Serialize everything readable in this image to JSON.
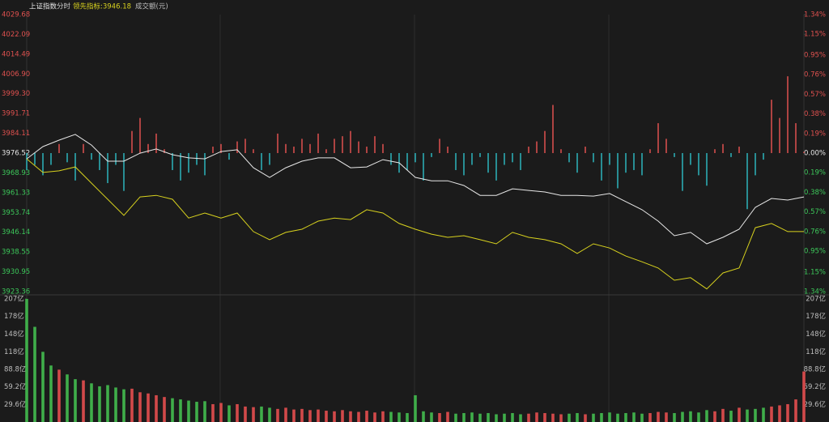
{
  "header": {
    "items": [
      "上证指数",
      "分时",
      "领先指标:3946.18",
      "成交额(元)"
    ]
  },
  "chart_data": {
    "type": "intraday",
    "ylim": [
      3923.36,
      4029.68
    ],
    "yticks": [
      4029.68,
      4022.09,
      4014.49,
      {
        "value": 4006.9,
        "label": "4006.90"
      },
      {
        "value": 3999.3,
        "label": "3999.30"
      },
      3991.71,
      3984.11,
      3976.52,
      3968.93,
      3961.33,
      3953.74,
      3946.14,
      3938.55,
      3930.95,
      3923.36
    ],
    "y2lim": [
      -1.34,
      1.34
    ],
    "y2ticks": [
      {
        "value": 1.34,
        "label": "1.34%"
      },
      {
        "value": 1.15,
        "label": "1.15%"
      },
      {
        "value": 0.95,
        "label": "0.95%"
      },
      {
        "value": 0.76,
        "label": "0.76%"
      },
      {
        "value": 0.57,
        "label": "0.57%"
      },
      {
        "value": 0.38,
        "label": "0.38%"
      },
      {
        "value": 0.19,
        "label": "0.19%"
      },
      {
        "value": 0,
        "label": "0.00%"
      },
      {
        "value": -0.19,
        "label": "0.19%"
      },
      {
        "value": -0.38,
        "label": "0.38%"
      },
      {
        "value": -0.57,
        "label": "0.57%"
      },
      {
        "value": -0.76,
        "label": "0.76%"
      },
      {
        "value": -0.95,
        "label": "0.95%"
      },
      {
        "value": -1.15,
        "label": "1.15%"
      },
      {
        "value": -1.34,
        "label": "1.34%"
      }
    ],
    "up_color": "#e0514f",
    "down_color": "#2cb5bd",
    "flat_color": "#e6e6e6",
    "down_label_color": "#3cc85a",
    "series": [
      {
        "color": "#e8e8e8",
        "values": [
          3974.3,
          3979.0,
          3981.5,
          3983.7,
          3979.6,
          3973.4,
          3973.4,
          3976.5,
          3978.1,
          3975.9,
          3974.7,
          3974.3,
          3977.1,
          3977.8,
          3970.9,
          3967.2,
          3970.9,
          3973.4,
          3974.7,
          3974.7,
          3970.9,
          3971.2,
          3974.0,
          3972.8,
          3967.2,
          3965.9,
          3965.9,
          3964.1,
          3960.3,
          3960.3,
          3962.8,
          3962.2,
          3961.6,
          3960.3,
          3960.3,
          3960.0,
          3961.0,
          3957.9,
          3954.8,
          3950.4,
          3944.8,
          3946.1,
          3941.7,
          3944.2,
          3947.3,
          3955.7,
          3959.1,
          3958.5,
          3959.7
        ]
      },
      {
        "name": "领先指标",
        "color": "#d8d21e",
        "values": [
          3974.3,
          3969.1,
          3969.7,
          3971.2,
          3965.0,
          3958.8,
          3952.6,
          3959.7,
          3960.3,
          3958.8,
          3951.6,
          3953.5,
          3951.6,
          3953.5,
          3946.4,
          3943.3,
          3946.1,
          3947.3,
          3950.4,
          3951.6,
          3951.0,
          3954.8,
          3953.5,
          3949.5,
          3947.3,
          3945.4,
          3944.2,
          3944.8,
          3943.3,
          3941.7,
          3946.1,
          3944.2,
          3943.3,
          3941.7,
          3938.0,
          3941.7,
          3940.1,
          3937.0,
          3934.8,
          3932.4,
          3927.7,
          3928.7,
          3924.4,
          3930.5,
          3932.4,
          3947.9,
          3949.5,
          3946.4,
          3946.4
        ]
      }
    ],
    "bars": {
      "values": [
        3970,
        3972,
        3968,
        3972,
        3980,
        3973,
        3966,
        3980,
        3974,
        3970,
        3965,
        3972,
        3962,
        3985,
        3990,
        3980,
        3984,
        3978,
        3970,
        3966,
        3969,
        3972,
        3968,
        3979,
        3980,
        3974,
        3981,
        3982,
        3978,
        3970,
        3972,
        3984,
        3980,
        3979,
        3982,
        3980,
        3984,
        3978,
        3982,
        3983,
        3985,
        3981,
        3979,
        3983,
        3980,
        3972,
        3969,
        3970,
        3973,
        3966,
        3975,
        3982,
        3979,
        3970,
        3968,
        3972,
        3975,
        3969,
        3966,
        3972,
        3973,
        3970,
        3979,
        3981,
        3985,
        3995,
        3978,
        3973,
        3969,
        3979,
        3973,
        3966,
        3972,
        3963,
        3969,
        3970,
        3968,
        3978,
        3988,
        3982,
        3975,
        3962,
        3972,
        3968,
        3964,
        3978,
        3980,
        3975,
        3979,
        3955,
        3968,
        3974,
        3997,
        3990,
        4006,
        3988,
        3977
      ]
    },
    "volume": {
      "ylim": [
        0,
        207
      ],
      "yticks": [
        {
          "value": 207,
          "label": "207亿"
        },
        {
          "value": 178,
          "label": "178亿"
        },
        {
          "value": 148,
          "label": "148亿"
        },
        {
          "value": 118,
          "label": "118亿"
        },
        {
          "value": 88.8,
          "label": "88.8亿"
        },
        {
          "value": 59.2,
          "label": "59.2亿"
        },
        {
          "value": 29.6,
          "label": "29.6亿"
        }
      ],
      "up_color": "#d2494a",
      "down_color": "#3fae4a",
      "values": [
        207,
        160,
        118,
        95,
        88,
        80,
        72,
        70,
        65,
        60,
        62,
        58,
        55,
        56,
        50,
        48,
        45,
        42,
        40,
        38,
        36,
        34,
        35,
        30,
        32,
        28,
        30,
        26,
        25,
        26,
        24,
        22,
        24,
        21,
        22,
        20,
        21,
        19,
        18,
        20,
        18,
        17,
        19,
        16,
        18,
        17,
        16,
        15,
        45,
        18,
        16,
        15,
        17,
        14,
        15,
        16,
        14,
        15,
        13,
        14,
        15,
        13,
        14,
        16,
        15,
        14,
        13,
        14,
        15,
        13,
        14,
        15,
        16,
        14,
        15,
        16,
        14,
        15,
        17,
        16,
        15,
        17,
        18,
        16,
        20,
        18,
        22,
        19,
        24,
        21,
        22,
        24,
        26,
        28,
        30,
        38,
        85
      ]
    }
  }
}
